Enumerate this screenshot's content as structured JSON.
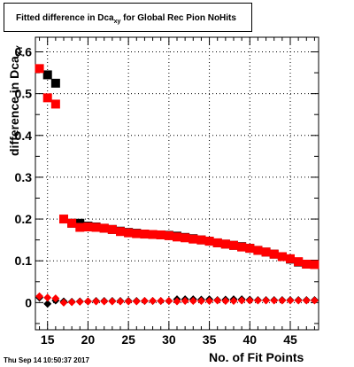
{
  "title": {
    "prefix": "Fitted difference in Dca",
    "subscript": "xy",
    "suffix": " for Global Rec Pion NoHits"
  },
  "ylabel": {
    "main": "difference in Dca",
    "subscript": "XY"
  },
  "xlabel": "No. of Fit Points",
  "datestamp": "Thu Sep 14 10:50:37 2017",
  "chart_data": {
    "type": "scatter",
    "title": "Fitted difference in Dca_xy for Global Rec Pion NoHits",
    "xlabel": "No. of Fit Points",
    "ylabel": "difference in Dca_XY",
    "xlim": [
      13.5,
      48.5
    ],
    "ylim": [
      -0.065,
      0.635
    ],
    "xticks": [
      15,
      20,
      25,
      30,
      35,
      40,
      45
    ],
    "yticks": [
      0,
      0.1,
      0.2,
      0.3,
      0.4,
      0.5,
      0.6
    ],
    "ytick_labels": [
      "0",
      "0.1",
      "0.2",
      "0.3",
      "0.4",
      "0.5",
      "0.6"
    ],
    "grid": true,
    "series": [
      {
        "color": "#000000",
        "marker": "square",
        "x": [
          15,
          16,
          18,
          19,
          20,
          21,
          22,
          23,
          24,
          25,
          26,
          27,
          28,
          29,
          30,
          31,
          32,
          33,
          34,
          35,
          36,
          37,
          38,
          39,
          40,
          41,
          42,
          43,
          44,
          45,
          46,
          47,
          48
        ],
        "y": [
          0.545,
          0.525,
          0.19,
          0.19,
          0.183,
          0.181,
          0.178,
          0.175,
          0.171,
          0.168,
          0.166,
          0.164,
          0.163,
          0.162,
          0.161,
          0.159,
          0.156,
          0.153,
          0.15,
          0.147,
          0.143,
          0.14,
          0.137,
          0.134,
          0.13,
          0.125,
          0.121,
          0.116,
          0.11,
          0.104,
          0.097,
          0.092,
          0.092
        ]
      },
      {
        "color": "#ff0000",
        "marker": "square",
        "x": [
          14,
          15,
          16,
          17,
          18,
          19,
          20,
          21,
          22,
          23,
          24,
          25,
          26,
          27,
          28,
          29,
          30,
          31,
          32,
          33,
          34,
          35,
          36,
          37,
          38,
          39,
          40,
          41,
          42,
          43,
          44,
          45,
          46,
          47,
          48
        ],
        "y": [
          0.56,
          0.49,
          0.475,
          0.2,
          0.19,
          0.18,
          0.181,
          0.18,
          0.178,
          0.175,
          0.17,
          0.167,
          0.165,
          0.164,
          0.163,
          0.162,
          0.16,
          0.157,
          0.155,
          0.152,
          0.15,
          0.147,
          0.143,
          0.14,
          0.137,
          0.133,
          0.13,
          0.125,
          0.121,
          0.116,
          0.11,
          0.105,
          0.098,
          0.092,
          0.091
        ]
      },
      {
        "color": "#000000",
        "marker": "diamond",
        "x": [
          14,
          15,
          16,
          17,
          18,
          19,
          20,
          21,
          22,
          23,
          24,
          25,
          26,
          27,
          28,
          29,
          30,
          31,
          32,
          33,
          34,
          35,
          36,
          37,
          38,
          39,
          40,
          41,
          42,
          43,
          44,
          45,
          46,
          47,
          48
        ],
        "y": [
          0.012,
          -0.003,
          0.005,
          0.003,
          0.002,
          0.003,
          0.003,
          0.004,
          0.004,
          0.004,
          0.004,
          0.004,
          0.004,
          0.004,
          0.004,
          0.004,
          0.004,
          0.008,
          0.008,
          0.008,
          0.007,
          0.008,
          0.006,
          0.007,
          0.008,
          0.008,
          0.007,
          0.006,
          0.006,
          0.006,
          0.006,
          0.006,
          0.006,
          0.006,
          0.006
        ]
      },
      {
        "color": "#ff0000",
        "marker": "diamond",
        "x": [
          14,
          15,
          16,
          17,
          18,
          19,
          20,
          21,
          22,
          23,
          24,
          25,
          26,
          27,
          28,
          29,
          30,
          31,
          32,
          33,
          34,
          35,
          36,
          37,
          38,
          39,
          40,
          41,
          42,
          43,
          44,
          45,
          46,
          47,
          48
        ],
        "y": [
          0.015,
          0.012,
          0.01,
          0.0,
          0.001,
          0.002,
          0.003,
          0.003,
          0.003,
          0.003,
          0.003,
          0.003,
          0.003,
          0.004,
          0.004,
          0.004,
          0.004,
          0.003,
          0.004,
          0.004,
          0.004,
          0.004,
          0.005,
          0.004,
          0.004,
          0.005,
          0.005,
          0.005,
          0.005,
          0.005,
          0.005,
          0.005,
          0.005,
          0.005,
          0.005
        ]
      }
    ]
  }
}
